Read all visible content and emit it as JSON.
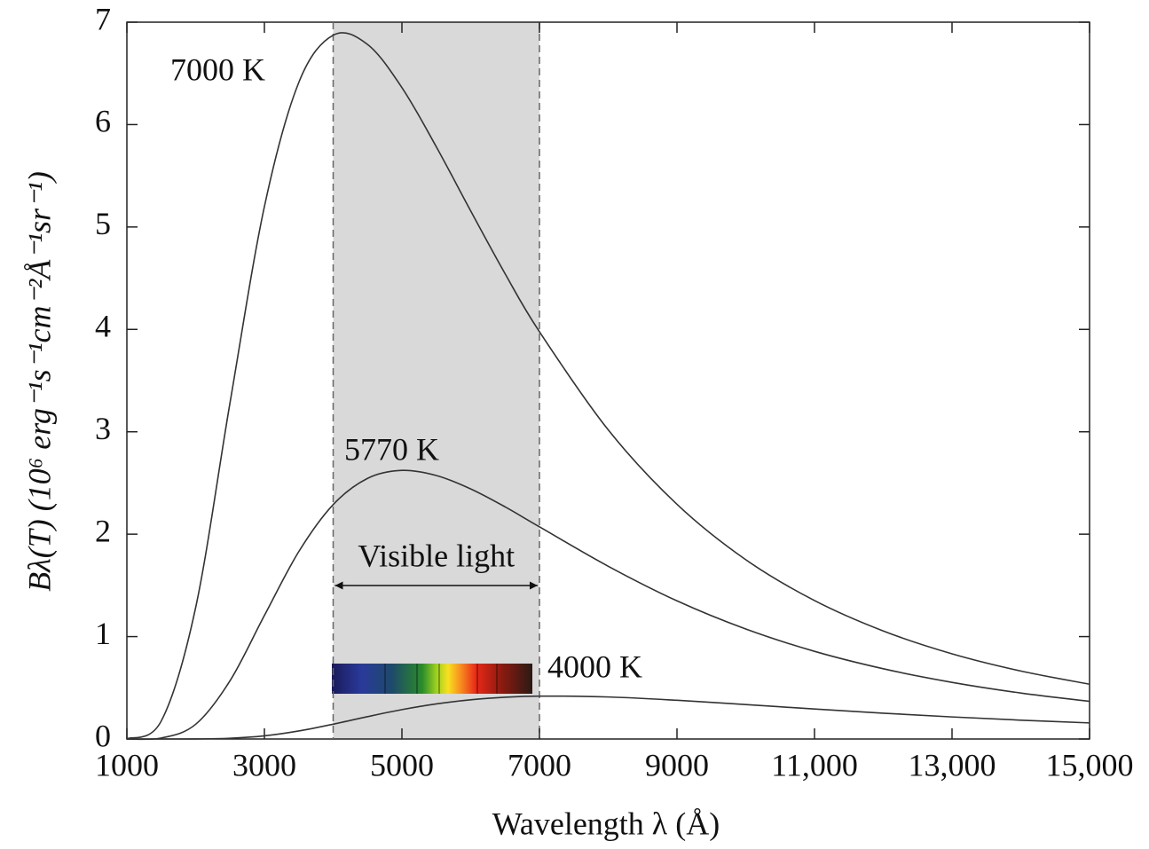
{
  "chart_data": {
    "type": "line",
    "x_label": "Wavelength λ (Å)",
    "y_label": "Bλ(T) (10⁶ erg⁻¹s⁻¹cm⁻²Å⁻¹sr⁻¹)",
    "x": [
      1000,
      1500,
      2000,
      2500,
      3000,
      3500,
      4000,
      4500,
      5000,
      5500,
      6000,
      6500,
      7000,
      8000,
      9000,
      10000,
      11000,
      12000,
      13000,
      14000,
      15000
    ],
    "series": [
      {
        "name": "7000 K",
        "color": "#333333",
        "values": [
          0.0014,
          0.176,
          1.283,
          3.284,
          5.199,
          6.411,
          6.873,
          6.782,
          6.361,
          5.783,
          5.157,
          4.544,
          3.977,
          3.019,
          2.292,
          1.751,
          1.352,
          1.055,
          0.832,
          0.664,
          0.535
        ]
      },
      {
        "name": "5770 K",
        "color": "#333333",
        "values": [
          0,
          0.0095,
          0.1434,
          0.569,
          1.206,
          1.83,
          2.289,
          2.545,
          2.623,
          2.573,
          2.442,
          2.267,
          2.072,
          1.687,
          1.349,
          1.074,
          0.856,
          0.686,
          0.553,
          0.449,
          0.368
        ]
      },
      {
        "name": "4000 K",
        "color": "#333333",
        "values": [
          0,
          0,
          0.0006,
          0.0069,
          0.0305,
          0.0782,
          0.1448,
          0.2183,
          0.2869,
          0.3428,
          0.383,
          0.4077,
          0.4187,
          0.4104,
          0.3781,
          0.3361,
          0.2926,
          0.2518,
          0.2155,
          0.1839,
          0.157
        ]
      }
    ],
    "visible_band": [
      4000,
      7000
    ],
    "visible_label": "Visible light",
    "xlim": [
      1000,
      15000
    ],
    "xticks": [
      1000,
      3000,
      5000,
      7000,
      9000,
      {
        "value": 11000,
        "label": "11,000"
      },
      {
        "value": 13000,
        "label": "13,000"
      },
      {
        "value": 15000,
        "label": "15,000"
      }
    ],
    "ylim": [
      0,
      7
    ],
    "yticks": [
      0,
      1,
      2,
      3,
      4,
      5,
      6,
      7
    ]
  }
}
